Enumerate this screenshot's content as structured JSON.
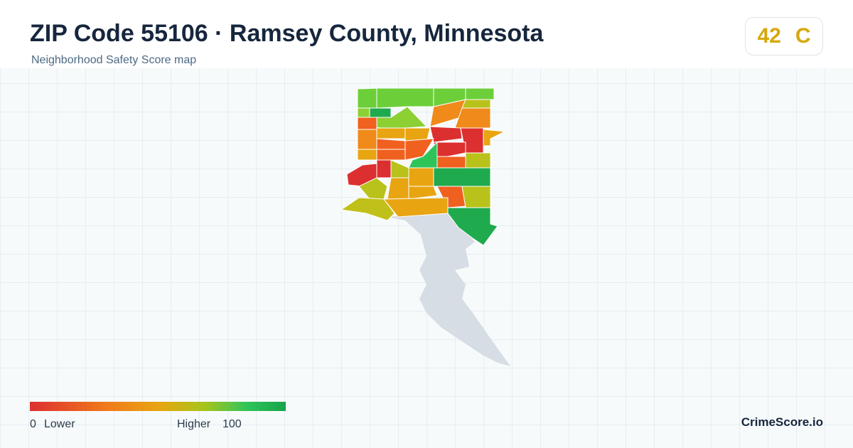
{
  "header": {
    "title": "ZIP Code 55106 · Ramsey County, Minnesota",
    "subtitle": "Neighborhood Safety Score map"
  },
  "score": {
    "value": 42,
    "grade": "C"
  },
  "legend": {
    "min": 0,
    "min_label": "Lower",
    "max_label": "Higher",
    "max": 100
  },
  "brand": "CrimeScore.io"
}
